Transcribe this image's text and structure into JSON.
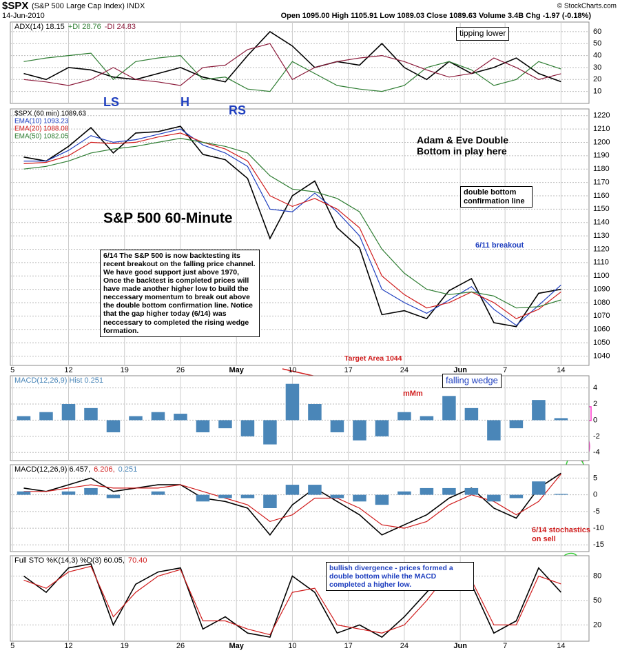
{
  "header": {
    "symbol": "$SPX",
    "name": "(S&P 500 Large Cap Index) INDX",
    "date": "14-Jun-2010",
    "quote": "Open 1095.00  High 1105.91  Low 1089.03  Close 1089.63  Volume 3.4B  Chg -1.97 (-0.18%)",
    "credit": "© StockCharts.com"
  },
  "annotations": {
    "tipping": "tipping lower",
    "ls": "LS",
    "h": "H",
    "rs": "RS",
    "title": "S&P 500 60-Minute",
    "adam": "Adam & Eve Double Bottom in play here",
    "confirm": "double bottom confirmation line",
    "breakout": "6/11 breakout",
    "comment": "6/14 The S&P 500 is now backtesting its recent breakout on the falling price channel. We have good support just above 1970,  Once the backtest is completed prices will have made another higher low to build the neccessary momentum to break out above the double bottom confirmation line.  Notice that the gap higher today (6/14) was neccessary to completed the rising wedge formation.",
    "target": "Target Area 1044",
    "wedge": "falling wedge",
    "mmm": "mMm",
    "sell": "6/14 stochastics on  sell",
    "divergence": "bullish divergence - prices formed a double bottom while the MACD completed a higher low.",
    "question": "?"
  },
  "chart_data": [
    {
      "type": "line",
      "legend": "row",
      "x": [
        1,
        3,
        5,
        7,
        9,
        11,
        13,
        15,
        17,
        19,
        21,
        23,
        25,
        27,
        29,
        31,
        33,
        35,
        37,
        39,
        41,
        43,
        45,
        47,
        49
      ],
      "xlim": [
        -0.2,
        51.5
      ],
      "ylim": [
        0,
        68
      ],
      "yticks": [
        10,
        20,
        30,
        40,
        50,
        60
      ],
      "series": [
        {
          "name": "ADX(14) 18.15",
          "color": "#000000",
          "values": [
            25,
            20,
            30,
            28,
            22,
            20,
            25,
            30,
            22,
            18,
            40,
            60,
            48,
            30,
            35,
            32,
            50,
            30,
            20,
            35,
            25,
            30,
            38,
            25,
            18.15
          ]
        },
        {
          "name": "+DI 28.76",
          "color": "#2e7d32",
          "values": [
            35,
            38,
            40,
            42,
            20,
            35,
            38,
            40,
            20,
            22,
            12,
            10,
            35,
            25,
            15,
            12,
            10,
            15,
            30,
            35,
            28,
            15,
            20,
            35,
            28.76
          ]
        },
        {
          "name": "-DI 24.83",
          "color": "#8b1a3a",
          "values": [
            20,
            18,
            15,
            20,
            30,
            20,
            18,
            15,
            30,
            32,
            45,
            50,
            20,
            30,
            35,
            38,
            40,
            35,
            28,
            22,
            25,
            38,
            30,
            20,
            24.83
          ]
        }
      ]
    },
    {
      "type": "line",
      "legend": "column",
      "x": [
        1,
        3,
        5,
        7,
        9,
        11,
        13,
        15,
        17,
        19,
        21,
        23,
        25,
        27,
        29,
        31,
        33,
        35,
        37,
        39,
        41,
        43,
        45,
        47,
        49
      ],
      "xlim": [
        -0.2,
        51.5
      ],
      "ylim": [
        1033,
        1225
      ],
      "yticks": [
        1040,
        1050,
        1060,
        1070,
        1080,
        1090,
        1100,
        1110,
        1120,
        1130,
        1140,
        1150,
        1160,
        1170,
        1180,
        1190,
        1200,
        1210,
        1220
      ],
      "xticks": [
        {
          "value": 0,
          "label": "5"
        },
        {
          "value": 5,
          "label": "12"
        },
        {
          "value": 10,
          "label": "19"
        },
        {
          "value": 15,
          "label": "26"
        },
        {
          "value": 20,
          "label": "May"
        },
        {
          "value": 25,
          "label": "10"
        },
        {
          "value": 30,
          "label": "17"
        },
        {
          "value": 35,
          "label": "24"
        },
        {
          "value": 40,
          "label": "Jun"
        },
        {
          "value": 44,
          "label": "7"
        },
        {
          "value": 49,
          "label": "14"
        }
      ],
      "series": [
        {
          "name": "$SPX (60 min) 1089.63",
          "color": "#000000",
          "values": [
            1189,
            1186,
            1197,
            1211,
            1192,
            1207,
            1208,
            1212,
            1191,
            1187,
            1173,
            1128,
            1160,
            1171,
            1136,
            1121,
            1071,
            1074,
            1068,
            1089,
            1098,
            1065,
            1062,
            1087,
            1090
          ]
        },
        {
          "name": "EMA(10) 1093.23",
          "color": "#1f3fbf",
          "values": [
            1186,
            1186,
            1194,
            1205,
            1200,
            1202,
            1206,
            1210,
            1198,
            1192,
            1182,
            1150,
            1148,
            1162,
            1148,
            1130,
            1090,
            1080,
            1072,
            1082,
            1092,
            1075,
            1063,
            1078,
            1093.23
          ]
        },
        {
          "name": "EMA(20) 1088.08",
          "color": "#d01c1c",
          "values": [
            1184,
            1185,
            1190,
            1200,
            1199,
            1200,
            1204,
            1207,
            1200,
            1195,
            1186,
            1160,
            1152,
            1158,
            1150,
            1136,
            1100,
            1086,
            1076,
            1080,
            1088,
            1080,
            1068,
            1075,
            1088.08
          ]
        },
        {
          "name": "EMA(50) 1082.05",
          "color": "#2e7d32",
          "values": [
            1180,
            1182,
            1186,
            1192,
            1195,
            1197,
            1200,
            1203,
            1200,
            1197,
            1192,
            1175,
            1165,
            1163,
            1158,
            1148,
            1120,
            1102,
            1090,
            1086,
            1088,
            1085,
            1076,
            1077,
            1082.05
          ]
        }
      ]
    },
    {
      "type": "bar",
      "legend": "row",
      "x": [
        1,
        3,
        5,
        7,
        9,
        11,
        13,
        15,
        17,
        19,
        21,
        23,
        25,
        27,
        29,
        31,
        33,
        35,
        37,
        39,
        41,
        43,
        45,
        47,
        49
      ],
      "xlim": [
        -0.2,
        51.5
      ],
      "ylim": [
        -5,
        5.5
      ],
      "yticks": [
        -4,
        -2,
        0,
        2,
        4
      ],
      "series": [
        {
          "name": "MACD(12,26,9) Hist 0.251",
          "color": "#4a86b8",
          "values": [
            0.5,
            1,
            2,
            1.5,
            -1.5,
            0.5,
            1,
            0.8,
            -1.5,
            -1,
            -2,
            -3,
            4.5,
            2,
            -1.5,
            -2.5,
            -2,
            1,
            0.5,
            3,
            1.5,
            -2.5,
            -1,
            2.5,
            0.251
          ]
        }
      ]
    },
    {
      "type": "line",
      "legend": "row",
      "x": [
        1,
        3,
        5,
        7,
        9,
        11,
        13,
        15,
        17,
        19,
        21,
        23,
        25,
        27,
        29,
        31,
        33,
        35,
        37,
        39,
        41,
        43,
        45,
        47,
        49
      ],
      "xlim": [
        -0.2,
        51.5
      ],
      "ylim": [
        -17,
        9
      ],
      "yticks": [
        -15,
        -10,
        -5,
        0,
        5
      ],
      "series": [
        {
          "name": "MACD(12,26,9) 6.457,",
          "color": "#000000",
          "values": [
            2,
            1,
            3,
            5,
            1,
            2,
            3,
            3,
            -1,
            -2,
            -4,
            -12,
            -3,
            2,
            -2,
            -6,
            -12,
            -9,
            -6,
            -1,
            2,
            -4,
            -7,
            2,
            6.457
          ]
        },
        {
          "name": "6.206,",
          "color": "#d01c1c",
          "values": [
            1,
            1,
            2,
            3,
            2,
            2,
            2,
            3,
            1,
            -1,
            -3,
            -8,
            -6,
            -1,
            -1,
            -4,
            -9,
            -10,
            -8,
            -3,
            0,
            -2,
            -6,
            -2,
            6.206
          ]
        },
        {
          "name": "0.251",
          "color": "#4a86b8",
          "style": "bar",
          "values": [
            1,
            0,
            1,
            2,
            -1,
            0,
            1,
            0,
            -2,
            -1,
            -1,
            -4,
            3,
            3,
            -1,
            -2,
            -3,
            1,
            2,
            2,
            2,
            -2,
            -1,
            4,
            0.251
          ]
        }
      ]
    },
    {
      "type": "line",
      "legend": "row",
      "x": [
        1,
        3,
        5,
        7,
        9,
        11,
        13,
        15,
        17,
        19,
        21,
        23,
        25,
        27,
        29,
        31,
        33,
        35,
        37,
        39,
        41,
        43,
        45,
        47,
        49
      ],
      "xlim": [
        -0.2,
        51.5
      ],
      "ylim": [
        0,
        105
      ],
      "yticks": [
        20,
        50,
        80
      ],
      "xticks": [
        {
          "value": 0,
          "label": "5"
        },
        {
          "value": 5,
          "label": "12"
        },
        {
          "value": 10,
          "label": "19"
        },
        {
          "value": 15,
          "label": "26"
        },
        {
          "value": 20,
          "label": "May"
        },
        {
          "value": 25,
          "label": "10"
        },
        {
          "value": 30,
          "label": "17"
        },
        {
          "value": 35,
          "label": "24"
        },
        {
          "value": 40,
          "label": "Jun"
        },
        {
          "value": 44,
          "label": "7"
        },
        {
          "value": 49,
          "label": "14"
        }
      ],
      "series": [
        {
          "name": "Full STO %K(14,3) %D(3) 60.05,",
          "color": "#000000",
          "values": [
            80,
            60,
            90,
            95,
            20,
            70,
            85,
            90,
            15,
            30,
            10,
            5,
            80,
            60,
            10,
            20,
            5,
            30,
            60,
            90,
            70,
            10,
            25,
            90,
            60.05
          ]
        },
        {
          "name": "70.40",
          "color": "#d01c1c",
          "values": [
            75,
            65,
            85,
            92,
            30,
            60,
            80,
            88,
            25,
            25,
            15,
            8,
            60,
            65,
            20,
            15,
            10,
            20,
            50,
            85,
            75,
            20,
            20,
            80,
            70.4
          ]
        }
      ]
    }
  ]
}
